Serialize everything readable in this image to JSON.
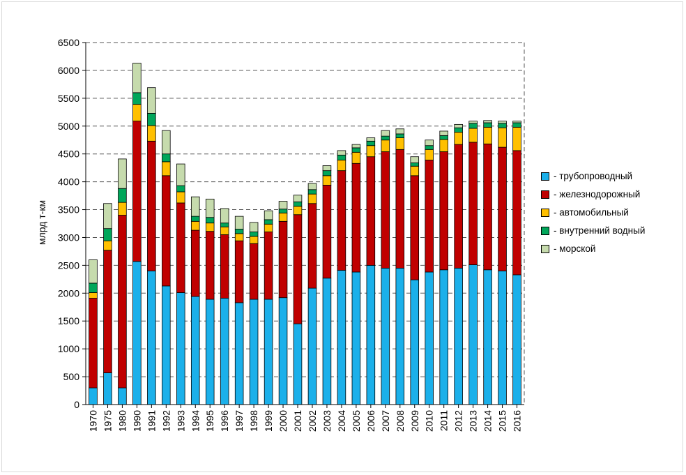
{
  "chart_data": {
    "type": "bar",
    "stacked": true,
    "title": "",
    "xlabel": "",
    "ylabel": "млрд т-км",
    "ylim": [
      0,
      6500
    ],
    "yticks": [
      0,
      500,
      1000,
      1500,
      2000,
      2500,
      3000,
      3500,
      4000,
      4500,
      5000,
      5500,
      6000,
      6500
    ],
    "grid": "horizontal dashed",
    "legend_position": "right",
    "categories": [
      "1970",
      "1975",
      "1980",
      "1990",
      "1991",
      "1992",
      "1993",
      "1994",
      "1995",
      "1996",
      "1997",
      "1998",
      "1999",
      "2000",
      "2001",
      "2002",
      "2003",
      "2004",
      "2005",
      "2006",
      "2007",
      "2008",
      "2009",
      "2010",
      "2011",
      "2012",
      "2013",
      "2014",
      "2015",
      "2016"
    ],
    "series": [
      {
        "name": "- трубопроводный",
        "color": "#1bb0ea",
        "values": [
          300,
          570,
          300,
          2570,
          2400,
          2130,
          2010,
          1940,
          1890,
          1910,
          1830,
          1890,
          1890,
          1920,
          1450,
          2090,
          2270,
          2410,
          2380,
          2500,
          2450,
          2450,
          2240,
          2380,
          2420,
          2450,
          2510,
          2420,
          2400,
          2330
        ]
      },
      {
        "name": "- железнодорожный",
        "color": "#c00000",
        "values": [
          1610,
          2200,
          3100,
          2520,
          2330,
          1980,
          1610,
          1190,
          1220,
          1140,
          1110,
          1000,
          1210,
          1370,
          1960,
          1520,
          1670,
          1790,
          1950,
          1950,
          2090,
          2130,
          1870,
          2010,
          2120,
          2220,
          2200,
          2260,
          2220,
          2230
        ]
      },
      {
        "name": "- автомобильный",
        "color": "#ffc000",
        "values": [
          100,
          170,
          230,
          300,
          280,
          250,
          200,
          160,
          150,
          140,
          130,
          130,
          140,
          150,
          150,
          170,
          170,
          190,
          200,
          200,
          210,
          210,
          170,
          190,
          220,
          220,
          250,
          300,
          350,
          420
        ]
      },
      {
        "name": "- внутренний водный",
        "color": "#00a65a",
        "values": [
          170,
          220,
          250,
          210,
          220,
          140,
          110,
          90,
          100,
          70,
          80,
          80,
          80,
          70,
          80,
          80,
          90,
          90,
          80,
          80,
          70,
          70,
          60,
          70,
          70,
          80,
          90,
          80,
          80,
          80
        ]
      },
      {
        "name": "- морской",
        "color": "#c6dbad",
        "values": [
          420,
          450,
          530,
          530,
          460,
          420,
          390,
          350,
          330,
          260,
          230,
          170,
          160,
          140,
          120,
          110,
          90,
          80,
          60,
          60,
          100,
          90,
          110,
          100,
          80,
          60,
          40,
          40,
          40,
          30
        ]
      }
    ]
  }
}
